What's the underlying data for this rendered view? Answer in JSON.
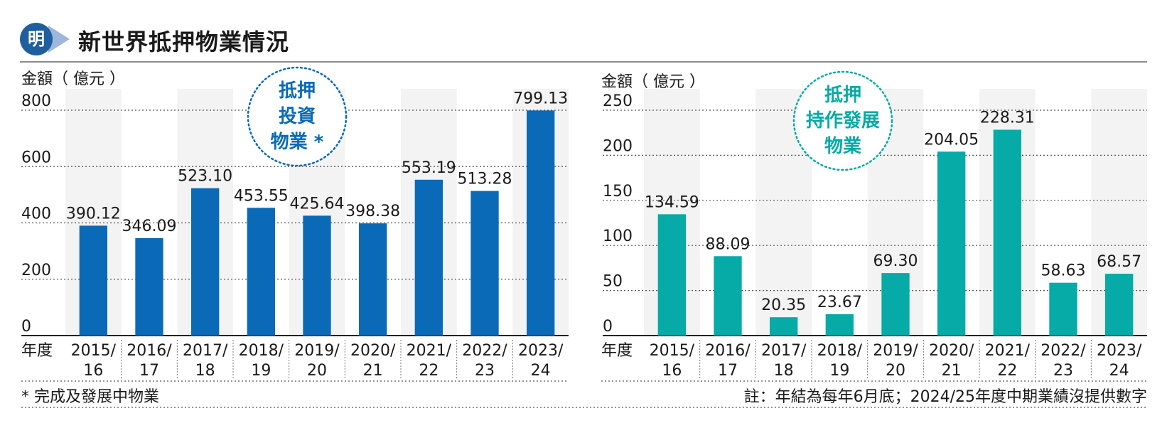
{
  "header": {
    "logo_char": "明",
    "title": "新世界抵押物業情況"
  },
  "footnotes": {
    "left": "* 完成及發展中物業",
    "right": "註：年結為每年6月底；2024/25年度中期業績沒提供數字"
  },
  "chart_data": [
    {
      "type": "bar",
      "ylabel": "金額（ 億元 ）",
      "xlabel": "年度",
      "badge": [
        "抵押",
        "投資",
        "物業 *"
      ],
      "color": "#0a6ab7",
      "badge_color": "#0a6ab7",
      "ylim": [
        0,
        800
      ],
      "yticks": [
        "0",
        "200",
        "400",
        "600",
        "800"
      ],
      "categories": [
        [
          "2015/",
          "16"
        ],
        [
          "2016/",
          "17"
        ],
        [
          "2017/",
          "18"
        ],
        [
          "2018/",
          "19"
        ],
        [
          "2019/",
          "20"
        ],
        [
          "2020/",
          "21"
        ],
        [
          "2021/",
          "22"
        ],
        [
          "2022/",
          "23"
        ],
        [
          "2023/",
          "24"
        ]
      ],
      "values": [
        390.12,
        346.09,
        523.1,
        453.55,
        425.64,
        398.38,
        553.19,
        513.28,
        799.13
      ],
      "value_labels": [
        "390.12",
        "346.09",
        "523.10",
        "453.55",
        "425.64",
        "398.38",
        "553.19",
        "513.28",
        "799.13"
      ],
      "grid": true
    },
    {
      "type": "bar",
      "ylabel": "金額（ 億元 ）",
      "xlabel": "年度",
      "badge": [
        "抵押",
        "持作發展",
        "物業"
      ],
      "color": "#06aaa6",
      "badge_color": "#06aaa6",
      "ylim": [
        0,
        250
      ],
      "yticks": [
        "0",
        "50",
        "100",
        "150",
        "200",
        "250"
      ],
      "categories": [
        [
          "2015/",
          "16"
        ],
        [
          "2016/",
          "17"
        ],
        [
          "2017/",
          "18"
        ],
        [
          "2018/",
          "19"
        ],
        [
          "2019/",
          "20"
        ],
        [
          "2020/",
          "21"
        ],
        [
          "2021/",
          "22"
        ],
        [
          "2022/",
          "23"
        ],
        [
          "2023/",
          "24"
        ]
      ],
      "values": [
        134.59,
        88.09,
        20.35,
        23.67,
        69.3,
        204.05,
        228.31,
        58.63,
        68.57
      ],
      "value_labels": [
        "134.59",
        "88.09",
        "20.35",
        "23.67",
        "69.30",
        "204.05",
        "228.31",
        "58.63",
        "68.57"
      ],
      "grid": true
    }
  ]
}
